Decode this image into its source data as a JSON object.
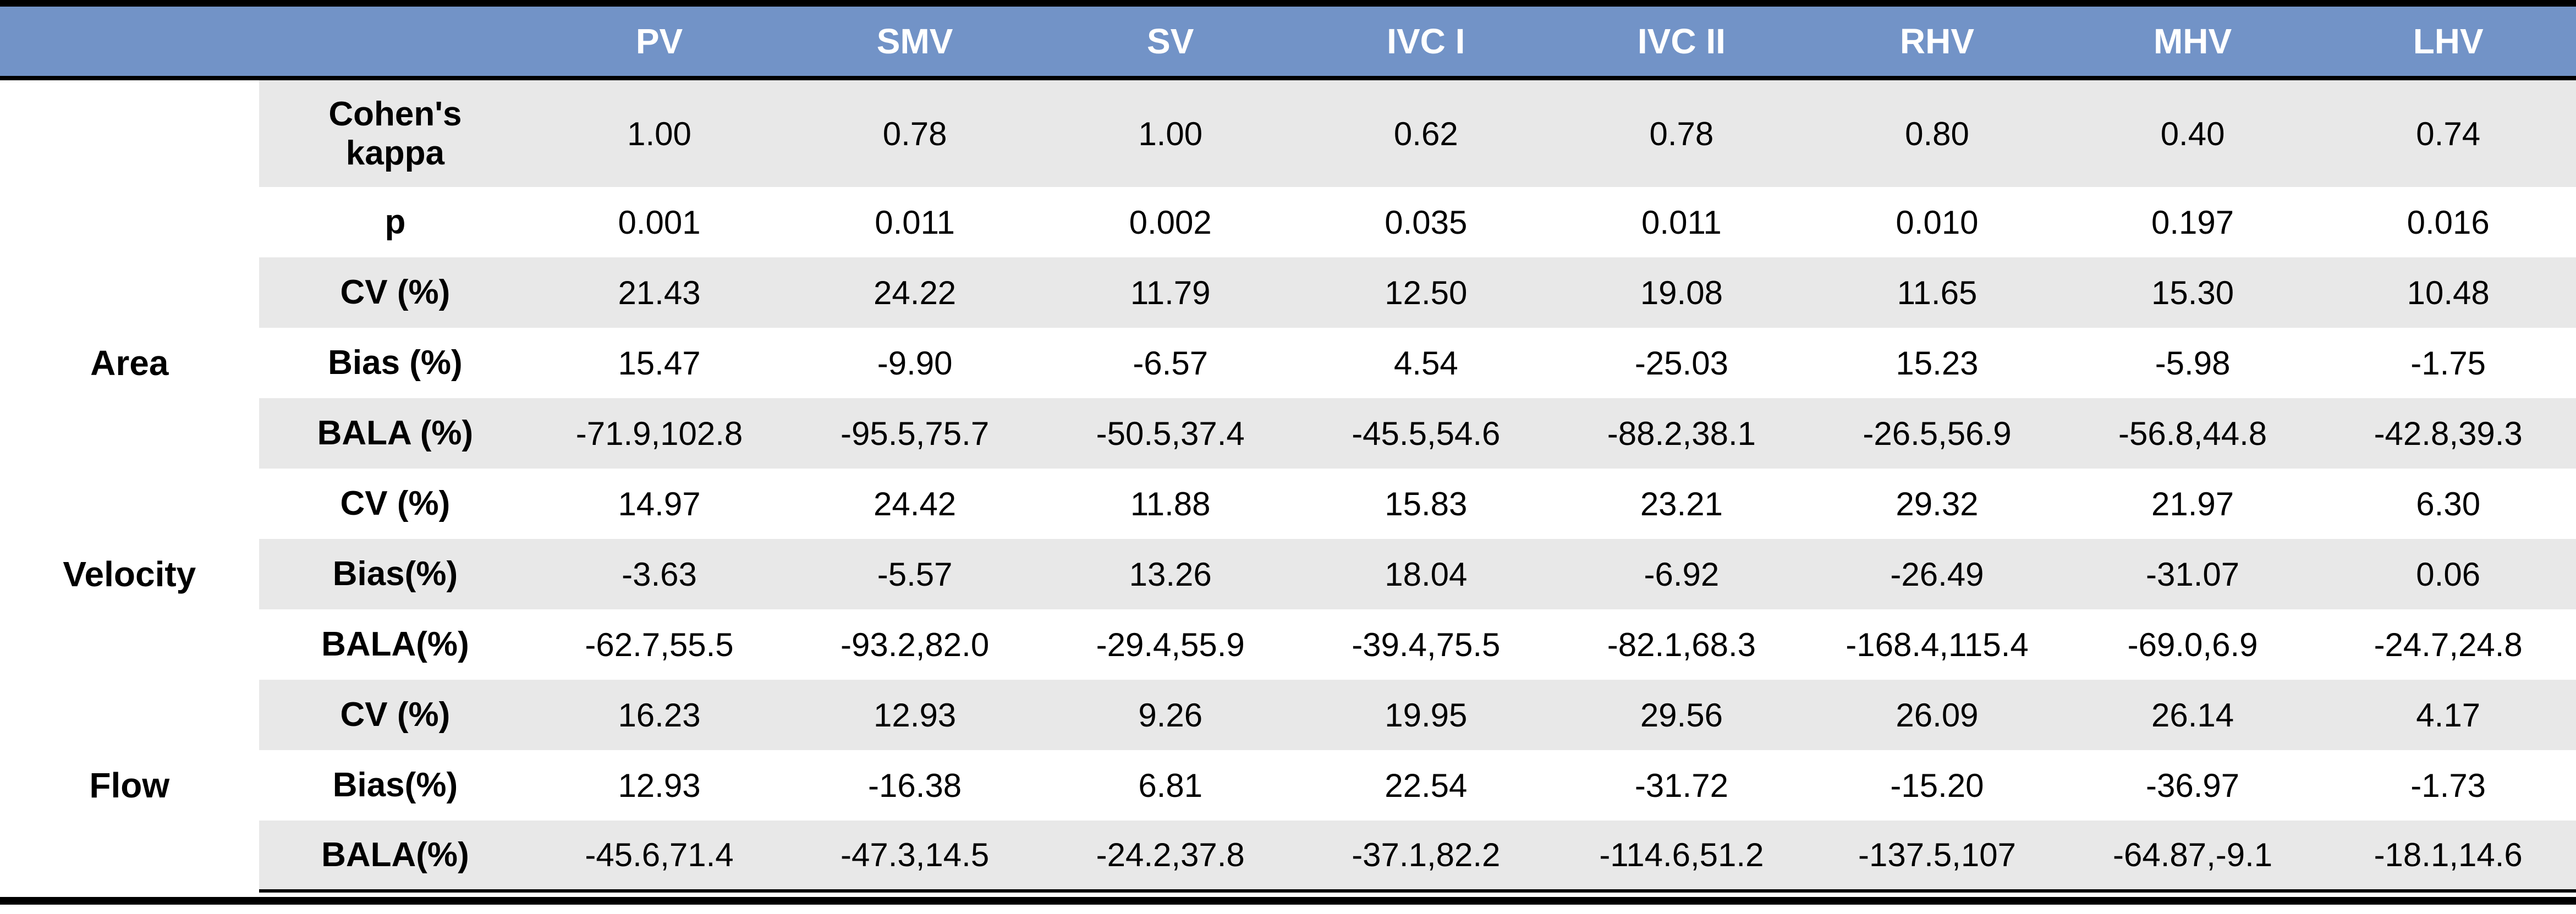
{
  "table": {
    "columns": [
      "PV",
      "SMV",
      "SV",
      "IVC I",
      "IVC II",
      "RHV",
      "MHV",
      "LHV"
    ],
    "groups": {
      "area": "Area",
      "velocity": "Velocity",
      "flow": "Flow"
    },
    "rows": [
      {
        "label": "Cohen's kappa",
        "values": [
          "1.00",
          "0.78",
          "1.00",
          "0.62",
          "0.78",
          "0.80",
          "0.40",
          "0.74"
        ]
      },
      {
        "label": "p",
        "values": [
          "0.001",
          "0.011",
          "0.002",
          "0.035",
          "0.011",
          "0.010",
          "0.197",
          "0.016"
        ]
      },
      {
        "label": "CV (%)",
        "values": [
          "21.43",
          "24.22",
          "11.79",
          "12.50",
          "19.08",
          "11.65",
          "15.30",
          "10.48"
        ]
      },
      {
        "label": "Bias (%)",
        "values": [
          "15.47",
          "-9.90",
          "-6.57",
          "4.54",
          "-25.03",
          "15.23",
          "-5.98",
          "-1.75"
        ]
      },
      {
        "label": "BALA (%)",
        "values": [
          "-71.9,102.8",
          "-95.5,75.7",
          "-50.5,37.4",
          "-45.5,54.6",
          "-88.2,38.1",
          "-26.5,56.9",
          "-56.8,44.8",
          "-42.8,39.3"
        ]
      },
      {
        "label": "CV (%)",
        "values": [
          "14.97",
          "24.42",
          "11.88",
          "15.83",
          "23.21",
          "29.32",
          "21.97",
          "6.30"
        ]
      },
      {
        "label": "Bias(%)",
        "values": [
          "-3.63",
          "-5.57",
          "13.26",
          "18.04",
          "-6.92",
          "-26.49",
          "-31.07",
          "0.06"
        ]
      },
      {
        "label": "BALA(%)",
        "values": [
          "-62.7,55.5",
          "-93.2,82.0",
          "-29.4,55.9",
          "-39.4,75.5",
          "-82.1,68.3",
          "-168.4,115.4",
          "-69.0,6.9",
          "-24.7,24.8"
        ]
      },
      {
        "label": "CV (%)",
        "values": [
          "16.23",
          "12.93",
          "9.26",
          "19.95",
          "29.56",
          "26.09",
          "26.14",
          "4.17"
        ]
      },
      {
        "label": "Bias(%)",
        "values": [
          "12.93",
          "-16.38",
          "6.81",
          "22.54",
          "-31.72",
          "-15.20",
          "-36.97",
          "-1.73"
        ]
      },
      {
        "label": "BALA(%)",
        "values": [
          "-45.6,71.4",
          "-47.3,14.5",
          "-24.2,37.8",
          "-37.1,82.2",
          "-114.6,51.2",
          "-137.5,107",
          "-64.87,-9.1",
          "-18.1,14.6"
        ]
      }
    ]
  }
}
